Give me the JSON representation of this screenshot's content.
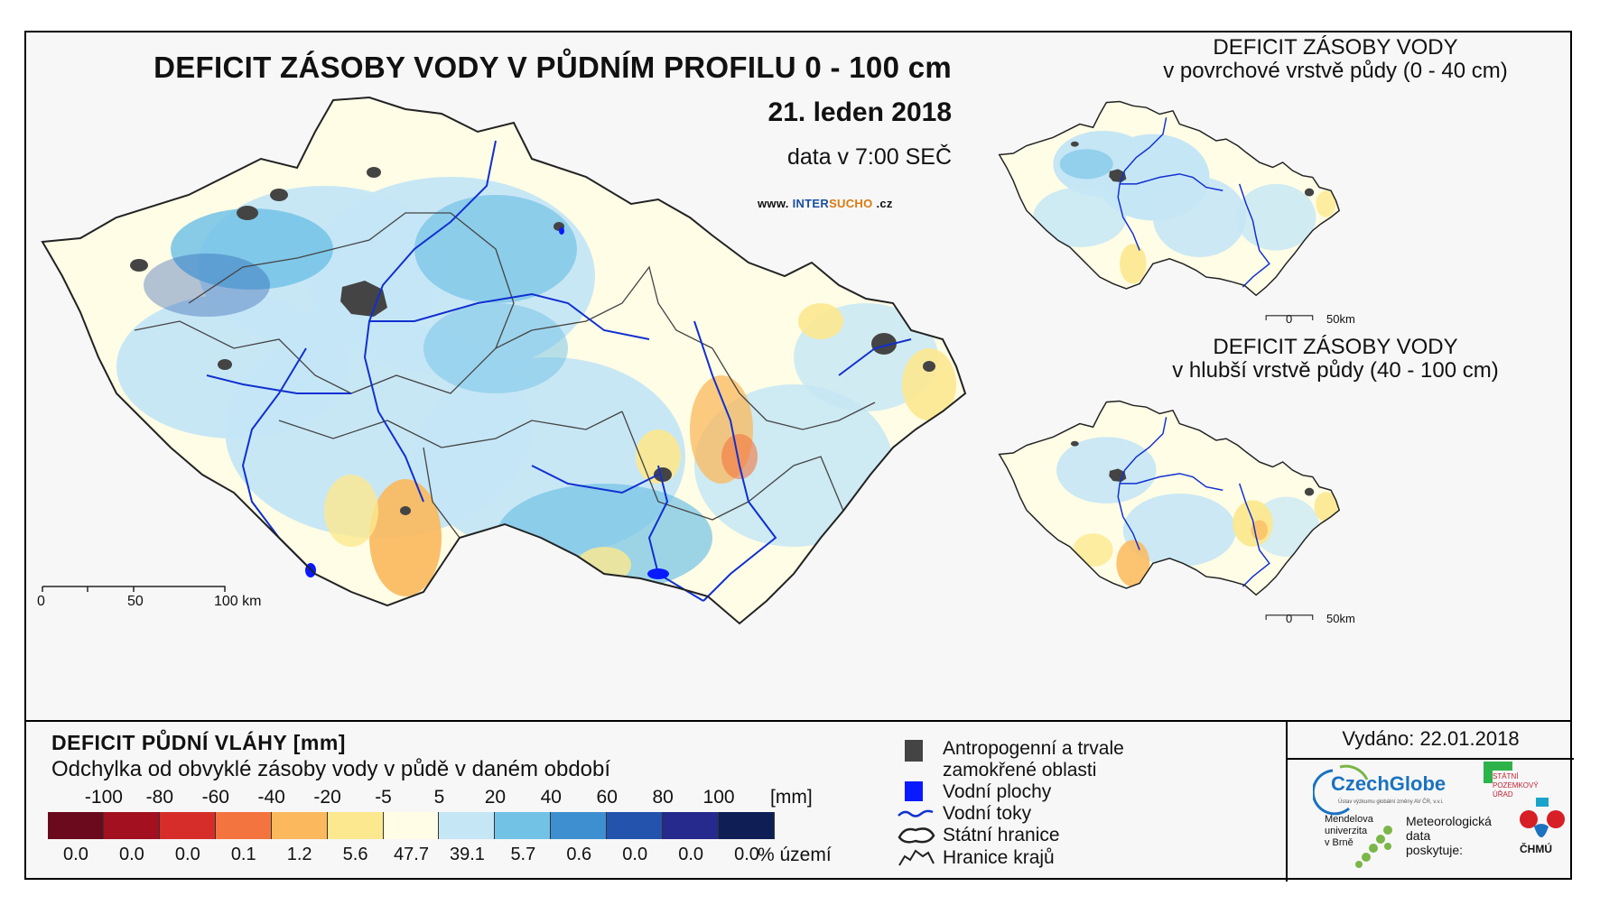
{
  "main_map": {
    "title": "DEFICIT ZÁSOBY VODY V PŮDNÍM PROFILU 0 - 100 cm",
    "date": "21. leden 2018",
    "time_info": "data v 7:00 SEČ",
    "website": {
      "prefix": "www. ",
      "part1": "INTER",
      "part2": "SUCHO",
      "suffix": " .cz"
    },
    "scalebar": {
      "labels": [
        "0",
        "50",
        "100 km"
      ]
    }
  },
  "inset_top": {
    "title_line1": "DEFICIT ZÁSOBY VODY",
    "title_line2": "v povrchové vrstvě půdy (0 - 40 cm)",
    "scalebar": {
      "labels": [
        "0",
        "50km"
      ]
    }
  },
  "inset_bottom": {
    "title_line1": "DEFICIT ZÁSOBY VODY",
    "title_line2": "v hlubší vrstvě půdy (40 - 100 cm)",
    "scalebar": {
      "labels": [
        "0",
        "50km"
      ]
    }
  },
  "legend": {
    "title": "DEFICIT PŮDNÍ VLÁHY [mm]",
    "subtitle": "Odchylka od obvyklé zásoby vody v půdě v daném období",
    "unit": "[mm]",
    "pct_unit": "% území",
    "class_breaks": [
      "-100",
      "-80",
      "-60",
      "-40",
      "-20",
      "-5",
      "5",
      "20",
      "40",
      "60",
      "80",
      "100"
    ],
    "classes": [
      {
        "color": "#6b0a1c",
        "pct": "0.0"
      },
      {
        "color": "#a3101f",
        "pct": "0.0"
      },
      {
        "color": "#d62d2b",
        "pct": "0.0"
      },
      {
        "color": "#f4743f",
        "pct": "0.1"
      },
      {
        "color": "#fbb85c",
        "pct": "1.2"
      },
      {
        "color": "#fce88f",
        "pct": "5.6"
      },
      {
        "color": "#fffde6",
        "pct": "47.7"
      },
      {
        "color": "#c5e6f5",
        "pct": "39.1"
      },
      {
        "color": "#72c2e6",
        "pct": "5.7"
      },
      {
        "color": "#3e8fd0",
        "pct": "0.6"
      },
      {
        "color": "#2353ad",
        "pct": "0.0"
      },
      {
        "color": "#252a8c",
        "pct": "0.0"
      },
      {
        "color": "#0f1f55",
        "pct": "0.0"
      }
    ]
  },
  "symbols": {
    "anthropogenic_line1": "Antropogenní a trvale",
    "anthropogenic_line2": "zamokřené oblasti",
    "water_bodies": "Vodní plochy",
    "rivers": "Vodní toky",
    "state_border": "Státní hranice",
    "regional_border": "Hranice krajů"
  },
  "issued": "Vydáno: 22.01.2018",
  "logos": {
    "czechglobe": "CzechGlobe",
    "czechglobe_sub": "Ústav výzkumu globální změny AV ČR, v.v.i.",
    "spu": [
      "STÁTNÍ",
      "POZEMKOVÝ",
      "ÚŘAD"
    ],
    "mendelu": [
      "Mendelova",
      "univerzita",
      "v Brně"
    ],
    "met_data": [
      "Meteorologická",
      "data",
      "poskytuje:"
    ],
    "chmu": "ČHMÚ"
  },
  "colors": {
    "river": "#1030d0",
    "anthropogenic": "#444444",
    "water_body": "#0a1aff",
    "map_base": "#fffde6",
    "wet": "#c5e6f5",
    "wetter": "#72c2e6",
    "dry": "#fbb85c",
    "slightly_dry": "#fce88f"
  }
}
